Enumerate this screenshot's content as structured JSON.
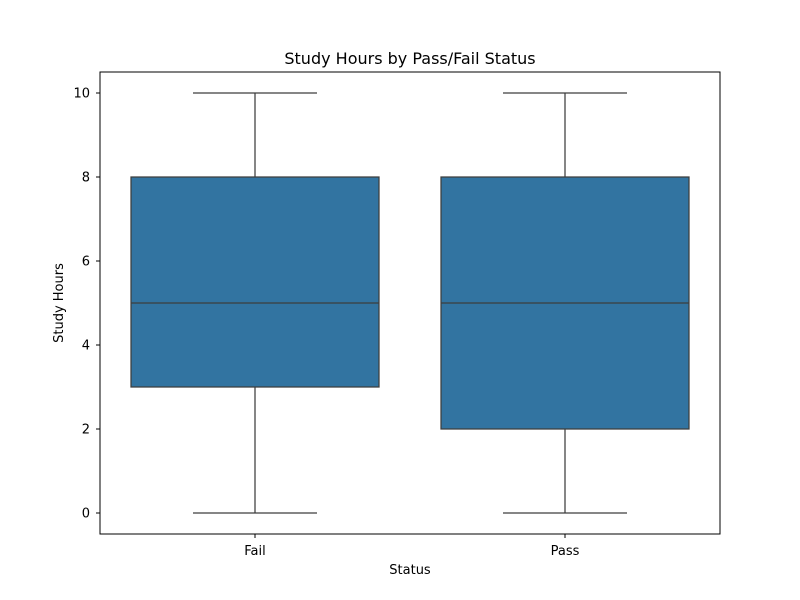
{
  "chart_data": {
    "type": "box",
    "title": "Study Hours by Pass/Fail Status",
    "xlabel": "Status",
    "ylabel": "Study Hours",
    "categories": [
      "Fail",
      "Pass"
    ],
    "ylim": [
      -0.5,
      10.5
    ],
    "yticks": [
      0,
      2,
      4,
      6,
      8,
      10
    ],
    "ytick_labels": [
      "0",
      "2",
      "4",
      "6",
      "8",
      "10"
    ],
    "box_color": "#3274a1",
    "line_color": "#3d3d3d",
    "boxes": [
      {
        "category": "Fail",
        "whisker_low": 0,
        "q1": 3,
        "median": 5,
        "q3": 8,
        "whisker_high": 10
      },
      {
        "category": "Pass",
        "whisker_low": 0,
        "q1": 2,
        "median": 5,
        "q3": 8,
        "whisker_high": 10
      }
    ],
    "grid": false,
    "legend": false
  }
}
